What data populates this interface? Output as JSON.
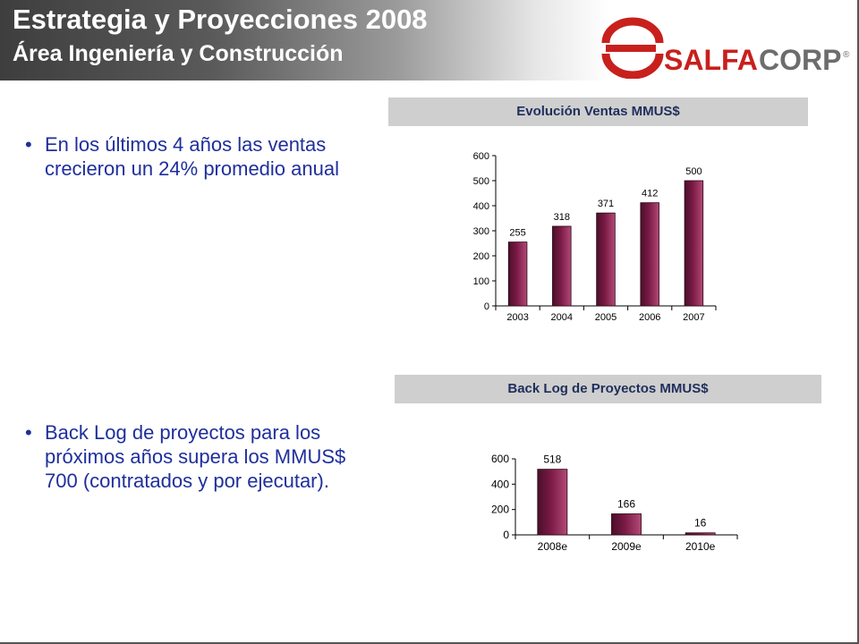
{
  "slide": {
    "title": "Estrategia y Proyecciones 2008",
    "subtitle": "Área Ingeniería y Construcción",
    "logo": {
      "text_a": "SALFA",
      "text_b": "CORP",
      "registered": "®",
      "color_primary": "#c8201d",
      "color_secondary": "#6d6d6d"
    },
    "bullets": [
      {
        "symbol": "•",
        "text": "En los últimos 4 años las ventas crecieron un 24% promedio anual"
      },
      {
        "symbol": "•",
        "text": "Back Log de proyectos para los próximos años supera los MMUS$ 700 (contratados y por ejecutar)."
      }
    ],
    "colors": {
      "bullet_text": "#1f2f9c",
      "bar": "#7a1a45",
      "header_bg": "#cfcfcf"
    }
  },
  "chart_data": [
    {
      "type": "bar",
      "title": "Evolución Ventas MMUS$",
      "categories": [
        "2003",
        "2004",
        "2005",
        "2006",
        "2007"
      ],
      "values": [
        255,
        318,
        371,
        412,
        500
      ],
      "ylim": [
        0,
        600
      ],
      "yticks": [
        0,
        100,
        200,
        300,
        400,
        500,
        600
      ],
      "data_labels": true,
      "grid": false,
      "legend": "none"
    },
    {
      "type": "bar",
      "title": "Back Log  de Proyectos MMUS$",
      "categories": [
        "2008e",
        "2009e",
        "2010e"
      ],
      "values": [
        518,
        166,
        16
      ],
      "ylim": [
        0,
        600
      ],
      "yticks": [
        0,
        200,
        400,
        600
      ],
      "data_labels": true,
      "grid": false,
      "legend": "none"
    }
  ]
}
